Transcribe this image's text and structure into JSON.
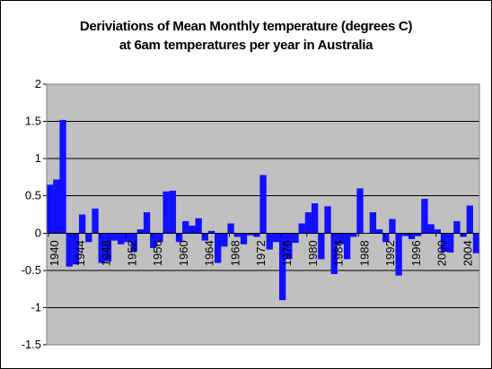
{
  "chart_data": {
    "type": "bar",
    "title_lines": [
      "Deriviations of Mean Monthly temperature (degrees C)",
      "at 6am temperatures per year in Australia"
    ],
    "xlabel": "",
    "ylabel": "",
    "ylim": [
      -1.5,
      2
    ],
    "y_ticks": [
      "2",
      "1.5",
      "1",
      "0.5",
      "0",
      "-0.5",
      "-1",
      "-1.5"
    ],
    "x_tick_labels": [
      "1940",
      "1944",
      "1948",
      "1952",
      "1956",
      "1960",
      "1964",
      "1968",
      "1972",
      "1976",
      "1980",
      "1984",
      "1988",
      "1992",
      "1996",
      "2000",
      "2004"
    ],
    "categories": [
      "1940",
      "1941",
      "1942",
      "1943",
      "1944",
      "1945",
      "1946",
      "1947",
      "1948",
      "1949",
      "1950",
      "1951",
      "1952",
      "1953",
      "1954",
      "1955",
      "1956",
      "1957",
      "1958",
      "1959",
      "1960",
      "1961",
      "1962",
      "1963",
      "1964",
      "1965",
      "1966",
      "1967",
      "1968",
      "1969",
      "1970",
      "1971",
      "1972",
      "1973",
      "1974",
      "1975",
      "1976",
      "1977",
      "1978",
      "1979",
      "1980",
      "1981",
      "1982",
      "1983",
      "1984",
      "1985",
      "1986",
      "1987",
      "1988",
      "1989",
      "1990",
      "1991",
      "1992",
      "1993",
      "1994",
      "1995",
      "1996",
      "1997",
      "1998",
      "1999",
      "2000",
      "2001",
      "2002",
      "2003",
      "2004",
      "2005",
      "2006"
    ],
    "values": [
      0.65,
      0.72,
      1.52,
      -0.45,
      -0.42,
      0.25,
      -0.12,
      0.33,
      -0.4,
      -0.38,
      -0.1,
      -0.15,
      -0.12,
      -0.25,
      0.05,
      0.28,
      -0.2,
      -0.12,
      0.56,
      0.57,
      -0.12,
      0.16,
      0.1,
      0.2,
      -0.1,
      0.03,
      -0.4,
      -0.18,
      0.13,
      -0.05,
      -0.15,
      -0.03,
      -0.05,
      0.78,
      -0.22,
      -0.12,
      -0.9,
      -0.35,
      -0.13,
      0.13,
      0.28,
      0.4,
      -0.35,
      0.36,
      -0.55,
      -0.15,
      -0.35,
      -0.05,
      0.6,
      0.0,
      0.28,
      0.05,
      -0.12,
      0.19,
      -0.57,
      -0.04,
      -0.08,
      -0.04,
      0.46,
      0.12,
      0.05,
      -0.25,
      -0.26,
      0.16,
      -0.05,
      0.37,
      -0.27
    ],
    "grid": true,
    "legend": "none",
    "colors": {
      "bar": "#1010ff",
      "plot_background": "#c0c0c0",
      "gridline": "#000000"
    }
  }
}
